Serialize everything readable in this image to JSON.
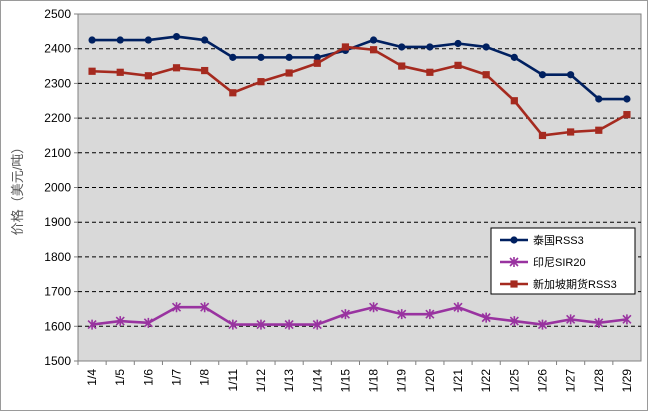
{
  "chart_data": {
    "type": "line",
    "title": "",
    "ylabel": "价格（美元/吨）",
    "xlabel": "",
    "ylim": [
      1500,
      2500
    ],
    "ytick_step": 100,
    "grid": "horizontal-dashed",
    "legend_position": "right",
    "categories": [
      "1/4",
      "1/5",
      "1/6",
      "1/7",
      "1/8",
      "1/11",
      "1/12",
      "1/13",
      "1/14",
      "1/15",
      "1/18",
      "1/19",
      "1/20",
      "1/21",
      "1/22",
      "1/25",
      "1/26",
      "1/27",
      "1/28",
      "1/29"
    ],
    "series": [
      {
        "name": "泰国RSS3",
        "color": "#002060",
        "marker": "circle",
        "values": [
          2425,
          2425,
          2425,
          2435,
          2425,
          2375,
          2375,
          2375,
          2375,
          2395,
          2425,
          2405,
          2405,
          2415,
          2405,
          2375,
          2325,
          2325,
          2255,
          2255
        ]
      },
      {
        "name": "印尼SIR20",
        "color": "#9933A0",
        "marker": "star",
        "values": [
          1605,
          1615,
          1610,
          1655,
          1655,
          1605,
          1605,
          1605,
          1605,
          1635,
          1655,
          1635,
          1635,
          1655,
          1625,
          1615,
          1605,
          1620,
          1610,
          1620
        ]
      },
      {
        "name": "新加坡期货RSS3",
        "color": "#A52A1F",
        "marker": "square",
        "values": [
          2335,
          2332,
          2322,
          2345,
          2337,
          2273,
          2305,
          2330,
          2358,
          2405,
          2397,
          2350,
          2332,
          2352,
          2325,
          2250,
          2150,
          2160,
          2165,
          2210
        ]
      }
    ]
  }
}
